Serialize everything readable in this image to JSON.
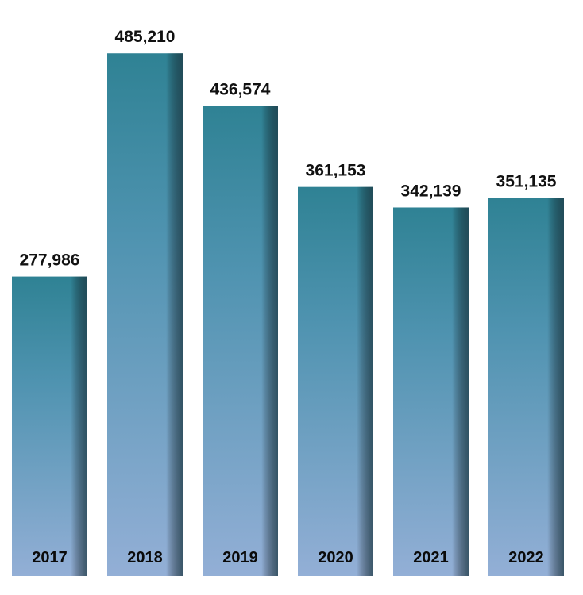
{
  "chart_data": {
    "type": "bar",
    "categories": [
      "2017",
      "2018",
      "2019",
      "2020",
      "2021",
      "2022"
    ],
    "values": [
      277986,
      485210,
      436574,
      361153,
      342139,
      351135
    ],
    "value_labels": [
      "277,986",
      "485,210",
      "436,574",
      "361,153",
      "342,139",
      "351,135"
    ],
    "title": "",
    "xlabel": "",
    "ylabel": "",
    "ylim": [
      0,
      520000
    ],
    "grid": false,
    "legend": "none",
    "category_label_position": "inside-bottom"
  },
  "colors": {
    "bar_top": "#2f8294",
    "bar_bottom": "#93afd6",
    "bar_side_shadow": "#1d3a45",
    "value_text": "#111111",
    "category_text": "#0a0a0a",
    "background": "#ffffff"
  }
}
